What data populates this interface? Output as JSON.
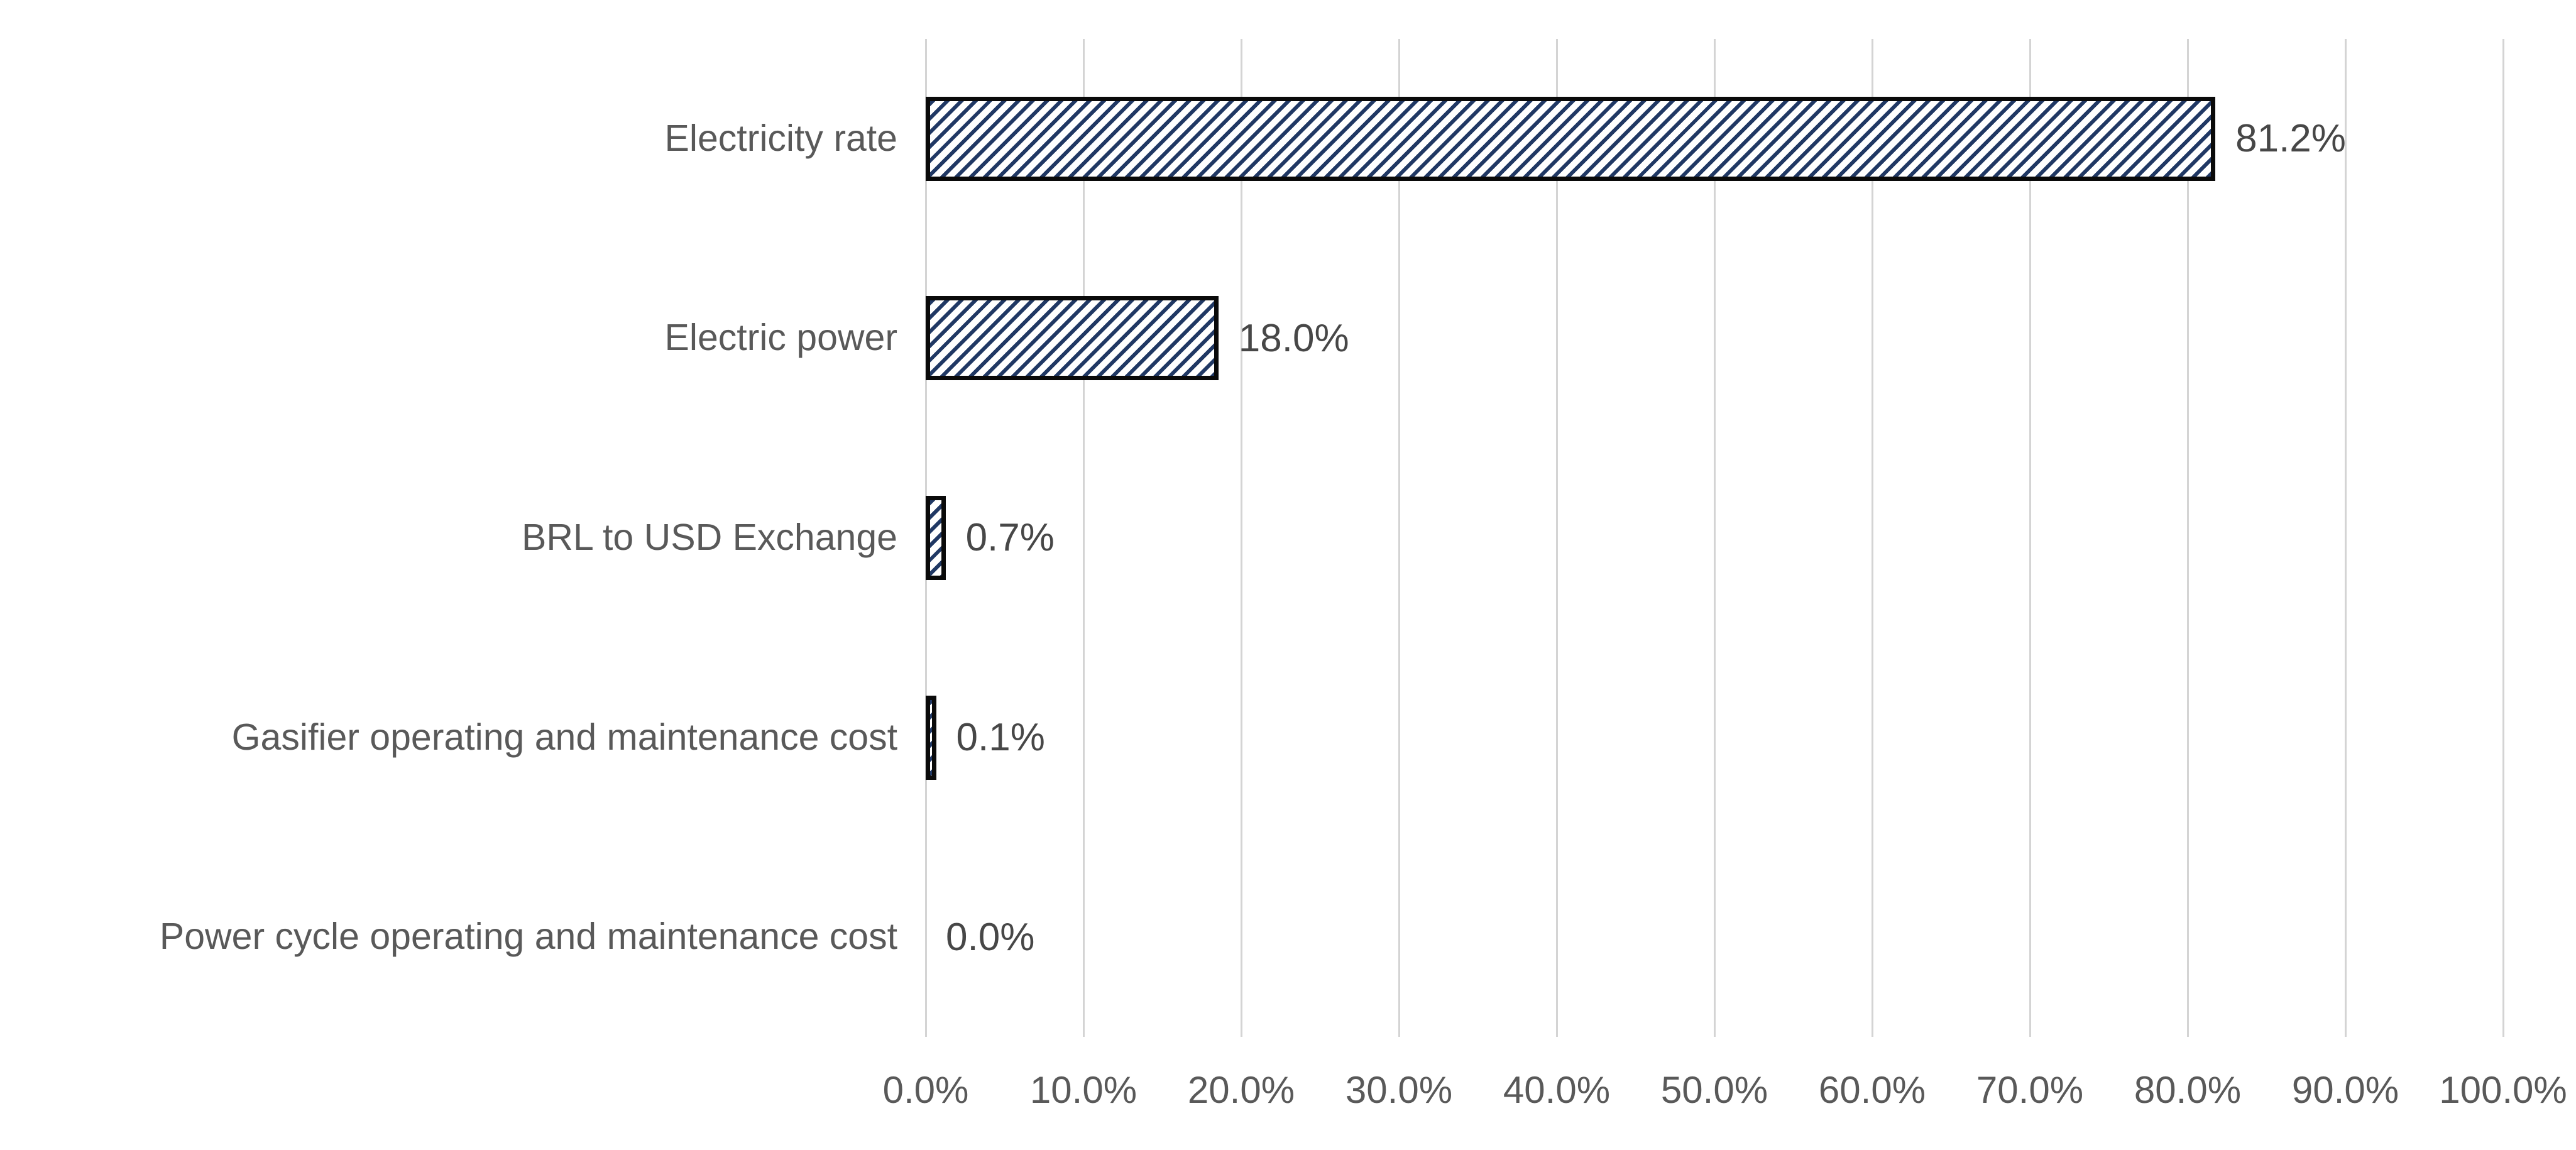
{
  "chart_data": {
    "type": "bar",
    "orientation": "horizontal",
    "title": "",
    "xlabel": "",
    "ylabel": "",
    "categories": [
      "Electricity rate",
      "Electric power",
      "BRL to USD Exchange",
      "Gasifier operating and maintenance cost",
      "Power cycle operating and maintenance cost"
    ],
    "values": [
      81.2,
      18.0,
      0.7,
      0.1,
      0.0
    ],
    "data_labels": [
      "81.2%",
      "18.0%",
      "0.7%",
      "0.1%",
      "0.0%"
    ],
    "x_tick_labels": [
      "0.0%",
      "10.0%",
      "20.0%",
      "30.0%",
      "40.0%",
      "50.0%",
      "60.0%",
      "70.0%",
      "80.0%",
      "90.0%",
      "100.0%"
    ],
    "xlim": [
      0,
      100
    ],
    "grid": true,
    "legend_position": "none",
    "bar_fill": "diagonal-hatch",
    "colors": {
      "hatch": "#203864",
      "bar_background": "#ffffff",
      "bar_border": "#0a0a0a",
      "gridline": "#d4d4d4",
      "category_label": "#595959",
      "data_label": "#474747",
      "axis_label": "#595959",
      "background": "#ffffff"
    }
  }
}
